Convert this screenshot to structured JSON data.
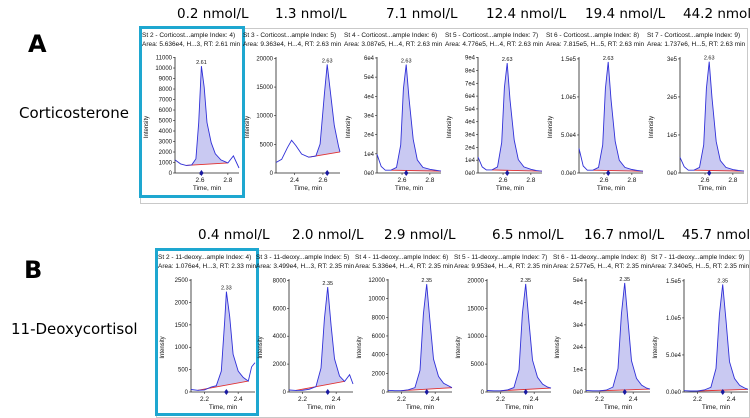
{
  "panels": [
    {
      "letter": "A",
      "analyte": "Corticosterone",
      "line_color": "#3030d8",
      "fill_color": "#c9c9f2",
      "baseline_color": "#e03030",
      "selection_color": "#1ea7d0",
      "charts": [
        {
          "conc": "0.2 nmol/L",
          "header": "St 2 - Corticost...ample Index: 4)",
          "info": "Area: 5.636e4, H...3, RT: 2.61 min",
          "apex_label": "2.61",
          "y_ticks": [
            "0",
            "1000",
            "2000",
            "3000",
            "4000",
            "5000",
            "6000",
            "7000",
            "8000",
            "9000",
            "10000",
            "11000"
          ],
          "x_ticks": [
            "2.6",
            "2.8"
          ],
          "xlabel": "Time, min",
          "ylabel": "Intensity",
          "selected": true
        },
        {
          "conc": "1.3 nmol/L",
          "header": "St 3 - Corticost...ample Index: 5)",
          "info": "Area: 9.363e4, H...4, RT: 2.63 min",
          "apex_label": "2.63",
          "y_ticks": [
            "0",
            "5000",
            "10000",
            "15000",
            "20000"
          ],
          "x_ticks": [
            "2.4",
            "2.6"
          ],
          "xlabel": "Time, min",
          "ylabel": "Intensity",
          "selected": false
        },
        {
          "conc": "7.1 nmol/L",
          "header": "St 4 - Corticost...ample Index: 6)",
          "info": "Area: 3.087e5, H...4, RT: 2.63 min",
          "apex_label": "2.63",
          "y_ticks": [
            "0e0",
            "1e4",
            "2e4",
            "3e4",
            "4e4",
            "5e4",
            "6e4"
          ],
          "x_ticks": [
            "2.6",
            "2.8"
          ],
          "xlabel": "Time, min",
          "ylabel": "Intensity",
          "selected": false
        },
        {
          "conc": "12.4 nmol/L",
          "header": "St 5 - Corticost...ample Index: 7)",
          "info": "Area: 4.776e5, H...4, RT: 2.63 min",
          "apex_label": "2.63",
          "y_ticks": [
            "0e0",
            "1e4",
            "2e4",
            "3e4",
            "4e4",
            "5e4",
            "6e4",
            "7e4",
            "8e4",
            "9e4"
          ],
          "x_ticks": [
            "2.6",
            "2.8"
          ],
          "xlabel": "Time, min",
          "ylabel": "Intensity",
          "selected": false
        },
        {
          "conc": "19.4 nmol/L",
          "header": "St 6 - Corticost...ample Index: 8)",
          "info": "Area: 7.815e5, H...5, RT: 2.63 min",
          "apex_label": "2.63",
          "y_ticks": [
            "0.0e0",
            "5.0e4",
            "1.0e5",
            "1.5e5"
          ],
          "x_ticks": [
            "2.6",
            "2.8"
          ],
          "xlabel": "Time, min",
          "ylabel": "Intensity",
          "selected": false
        },
        {
          "conc": "44.2 nmol/L",
          "header": "St 7 - Corticost...ample Index: 9)",
          "info": "Area: 1.737e6, H...5, RT: 2.63 min",
          "apex_label": "2.63",
          "y_ticks": [
            "0e0",
            "1e5",
            "2e5",
            "3e5"
          ],
          "x_ticks": [
            "2.6",
            "2.8"
          ],
          "xlabel": "Time, min",
          "ylabel": "Intensity",
          "selected": false
        }
      ]
    },
    {
      "letter": "B",
      "analyte": "11-Deoxycortisol",
      "line_color": "#3030d8",
      "fill_color": "#c9c9f2",
      "baseline_color": "#e03030",
      "selection_color": "#1ea7d0",
      "charts": [
        {
          "conc": "0.4 nmol/L",
          "header": "St 2 - 11-deoxy...ample Index: 4)",
          "info": "Area: 1.076e4, H...3, RT: 2.33 min",
          "apex_label": "2.33",
          "y_ticks": [
            "0",
            "500",
            "1000",
            "1500",
            "2000",
            "2500"
          ],
          "x_ticks": [
            "2.2",
            "2.4"
          ],
          "xlabel": "Time, min",
          "ylabel": "Intensity",
          "selected": true
        },
        {
          "conc": "2.0 nmol/L",
          "header": "St 3 - 11-deoxy...ample Index: 5)",
          "info": "Area: 3.499e4, H...3, RT: 2.35 min",
          "apex_label": "2.35",
          "y_ticks": [
            "0",
            "2000",
            "4000",
            "6000",
            "8000"
          ],
          "x_ticks": [
            "2.2",
            "2.4"
          ],
          "xlabel": "Time, min",
          "ylabel": "Intensity",
          "selected": false
        },
        {
          "conc": "2.9 nmol/L",
          "header": "St 4 - 11-deoxy...ample Index: 6)",
          "info": "Area: 5.336e4, H...4, RT: 2.35 min",
          "apex_label": "2.35",
          "y_ticks": [
            "0",
            "2000",
            "4000",
            "6000",
            "8000",
            "10000",
            "12000"
          ],
          "x_ticks": [
            "2.2",
            "2.4"
          ],
          "xlabel": "Time, min",
          "ylabel": "Intensity",
          "selected": false
        },
        {
          "conc": "6.5 nmol/L",
          "header": "St 5 - 11-deoxy...ample Index: 7)",
          "info": "Area: 9.953e4, H...4, RT: 2.35 min",
          "apex_label": "2.35",
          "y_ticks": [
            "0",
            "5000",
            "10000",
            "15000",
            "20000"
          ],
          "x_ticks": [
            "2.2",
            "2.4"
          ],
          "xlabel": "Time, min",
          "ylabel": "Intensity",
          "selected": false
        },
        {
          "conc": "16.7 nmol/L",
          "header": "St 6 - 11-deoxy...ample Index: 8)",
          "info": "Area: 2.577e5, H...4, RT: 2.35 min",
          "apex_label": "2.35",
          "y_ticks": [
            "0e0",
            "1e4",
            "2e4",
            "3e4",
            "4e4",
            "5e4"
          ],
          "x_ticks": [
            "2.2",
            "2.4"
          ],
          "xlabel": "Time, min",
          "ylabel": "Intensity",
          "selected": false
        },
        {
          "conc": "45.7 nmol/L",
          "header": "St 7 - 11-deoxy...ample Index: 9)",
          "info": "Area: 7.340e5, H...5, RT: 2.35 min",
          "apex_label": "2.35",
          "y_ticks": [
            "0.0e0",
            "5.0e4",
            "1.0e5",
            "1.5e5"
          ],
          "x_ticks": [
            "2.2",
            "2.4"
          ],
          "xlabel": "Time, min",
          "ylabel": "Intensity",
          "selected": false
        }
      ]
    }
  ],
  "chart_data": [
    {
      "type": "line",
      "panel": "A",
      "title": "St 2 - Corticost...ample Index: 4)",
      "xlabel": "Time, min",
      "ylabel": "Intensity",
      "ylim": [
        0,
        11500
      ],
      "xlim": [
        2.42,
        2.88
      ],
      "x": [
        2.42,
        2.46,
        2.5,
        2.54,
        2.57,
        2.59,
        2.61,
        2.63,
        2.65,
        2.68,
        2.71,
        2.75,
        2.8,
        2.84,
        2.88
      ],
      "y": [
        1300,
        900,
        750,
        800,
        1400,
        5000,
        10600,
        8500,
        5000,
        3000,
        1900,
        1300,
        1000,
        1700,
        500
      ]
    },
    {
      "type": "line",
      "panel": "A",
      "title": "St 3 - Corticost...ample Index: 5)",
      "xlabel": "Time, min",
      "ylabel": "Intensity",
      "ylim": [
        0,
        22000
      ],
      "xlim": [
        2.27,
        2.72
      ],
      "x": [
        2.27,
        2.31,
        2.35,
        2.38,
        2.41,
        2.45,
        2.5,
        2.55,
        2.58,
        2.61,
        2.63,
        2.65,
        2.68,
        2.71,
        2.72
      ],
      "y": [
        2000,
        2600,
        4800,
        6200,
        5200,
        3600,
        3000,
        3200,
        5500,
        15000,
        20600,
        16000,
        9000,
        5000,
        4000
      ]
    },
    {
      "type": "line",
      "panel": "A",
      "title": "St 4 - Corticost...ample Index: 6)",
      "xlabel": "Time, min",
      "ylabel": "Intensity",
      "ylim": [
        0,
        62000
      ],
      "xlim": [
        2.42,
        2.88
      ],
      "x": [
        2.42,
        2.45,
        2.48,
        2.52,
        2.56,
        2.59,
        2.61,
        2.63,
        2.65,
        2.68,
        2.71,
        2.75,
        2.8,
        2.84,
        2.88
      ],
      "y": [
        10000,
        3500,
        1500,
        1500,
        3000,
        15000,
        45000,
        58000,
        40000,
        18000,
        7000,
        3000,
        2000,
        1500,
        1000
      ]
    },
    {
      "type": "line",
      "panel": "A",
      "title": "St 5 - Corticost...ample Index: 7)",
      "xlabel": "Time, min",
      "ylabel": "Intensity",
      "ylim": [
        0,
        95000
      ],
      "xlim": [
        2.42,
        2.88
      ],
      "x": [
        2.42,
        2.45,
        2.48,
        2.52,
        2.56,
        2.59,
        2.61,
        2.63,
        2.65,
        2.68,
        2.71,
        2.75,
        2.8,
        2.84,
        2.88
      ],
      "y": [
        13000,
        5000,
        2500,
        2500,
        5000,
        25000,
        70000,
        90000,
        60000,
        27000,
        11000,
        5000,
        3000,
        2000,
        1500
      ]
    },
    {
      "type": "line",
      "panel": "A",
      "title": "St 6 - Corticost...ample Index: 8)",
      "xlabel": "Time, min",
      "ylabel": "Intensity",
      "ylim": [
        0,
        165000
      ],
      "xlim": [
        2.42,
        2.88
      ],
      "x": [
        2.42,
        2.45,
        2.48,
        2.52,
        2.56,
        2.59,
        2.61,
        2.63,
        2.65,
        2.68,
        2.71,
        2.75,
        2.8,
        2.84,
        2.88
      ],
      "y": [
        35000,
        10000,
        4000,
        4000,
        8000,
        40000,
        120000,
        158000,
        105000,
        45000,
        18000,
        8000,
        5000,
        3500,
        2500
      ]
    },
    {
      "type": "line",
      "panel": "A",
      "title": "St 7 - Corticost...ample Index: 9)",
      "xlabel": "Time, min",
      "ylabel": "Intensity",
      "ylim": [
        0,
        370000
      ],
      "xlim": [
        2.42,
        2.88
      ],
      "x": [
        2.42,
        2.45,
        2.48,
        2.52,
        2.56,
        2.59,
        2.61,
        2.63,
        2.65,
        2.68,
        2.71,
        2.75,
        2.8,
        2.84,
        2.88
      ],
      "y": [
        50000,
        20000,
        9000,
        9000,
        18000,
        90000,
        270000,
        355000,
        240000,
        100000,
        40000,
        18000,
        11000,
        8000,
        6000
      ]
    },
    {
      "type": "line",
      "panel": "B",
      "title": "St 2 - 11-deoxy...ample Index: 4)",
      "xlabel": "Time, min",
      "ylabel": "Intensity",
      "ylim": [
        0,
        2700
      ],
      "xlim": [
        2.12,
        2.5
      ],
      "x": [
        2.12,
        2.16,
        2.2,
        2.24,
        2.27,
        2.3,
        2.32,
        2.33,
        2.35,
        2.37,
        2.4,
        2.43,
        2.46,
        2.48,
        2.5
      ],
      "y": [
        60,
        40,
        50,
        120,
        150,
        500,
        1700,
        2400,
        1800,
        900,
        500,
        350,
        260,
        600,
        700
      ]
    },
    {
      "type": "line",
      "panel": "B",
      "title": "St 3 - 11-deoxy...ample Index: 5)",
      "xlabel": "Time, min",
      "ylabel": "Intensity",
      "ylim": [
        0,
        8500
      ],
      "xlim": [
        2.12,
        2.5
      ],
      "x": [
        2.12,
        2.16,
        2.2,
        2.24,
        2.28,
        2.31,
        2.33,
        2.35,
        2.37,
        2.39,
        2.42,
        2.45,
        2.48,
        2.5
      ],
      "y": [
        150,
        120,
        130,
        200,
        400,
        1800,
        5500,
        7900,
        5000,
        2500,
        1200,
        800,
        1300,
        600
      ]
    },
    {
      "type": "line",
      "panel": "B",
      "title": "St 4 - 11-deoxy...ample Index: 6)",
      "xlabel": "Time, min",
      "ylabel": "Intensity",
      "ylim": [
        0,
        13000
      ],
      "xlim": [
        2.12,
        2.5
      ],
      "x": [
        2.12,
        2.16,
        2.2,
        2.24,
        2.28,
        2.31,
        2.33,
        2.35,
        2.37,
        2.39,
        2.42,
        2.45,
        2.48,
        2.5
      ],
      "y": [
        200,
        150,
        150,
        250,
        500,
        2500,
        9000,
        12400,
        8000,
        3800,
        1800,
        1000,
        700,
        500
      ]
    },
    {
      "type": "line",
      "panel": "B",
      "title": "St 5 - 11-deoxy...ample Index: 7)",
      "xlabel": "Time, min",
      "ylabel": "Intensity",
      "ylim": [
        0,
        23000
      ],
      "xlim": [
        2.12,
        2.5
      ],
      "x": [
        2.12,
        2.16,
        2.2,
        2.24,
        2.28,
        2.31,
        2.33,
        2.35,
        2.37,
        2.39,
        2.42,
        2.45,
        2.48,
        2.5
      ],
      "y": [
        300,
        250,
        250,
        400,
        900,
        4500,
        16000,
        22000,
        14000,
        6500,
        3000,
        1600,
        1000,
        800
      ]
    },
    {
      "type": "line",
      "panel": "B",
      "title": "St 6 - 11-deoxy...ample Index: 8)",
      "xlabel": "Time, min",
      "ylabel": "Intensity",
      "ylim": [
        0,
        58000
      ],
      "xlim": [
        2.12,
        2.5
      ],
      "x": [
        2.12,
        2.16,
        2.2,
        2.24,
        2.28,
        2.31,
        2.33,
        2.35,
        2.37,
        2.39,
        2.42,
        2.45,
        2.48,
        2.5
      ],
      "y": [
        800,
        600,
        600,
        1000,
        2500,
        12000,
        40000,
        56000,
        36000,
        16000,
        7000,
        3500,
        2000,
        1500
      ]
    },
    {
      "type": "line",
      "panel": "B",
      "title": "St 7 - 11-deoxy...ample Index: 9)",
      "xlabel": "Time, min",
      "ylabel": "Intensity",
      "ylim": [
        0,
        168000
      ],
      "xlim": [
        2.12,
        2.5
      ],
      "x": [
        2.12,
        2.16,
        2.2,
        2.24,
        2.28,
        2.31,
        2.33,
        2.35,
        2.37,
        2.39,
        2.42,
        2.45,
        2.48,
        2.5
      ],
      "y": [
        2000,
        1500,
        1500,
        3000,
        7000,
        35000,
        115000,
        160000,
        105000,
        45000,
        20000,
        10000,
        6000,
        4000
      ]
    }
  ]
}
